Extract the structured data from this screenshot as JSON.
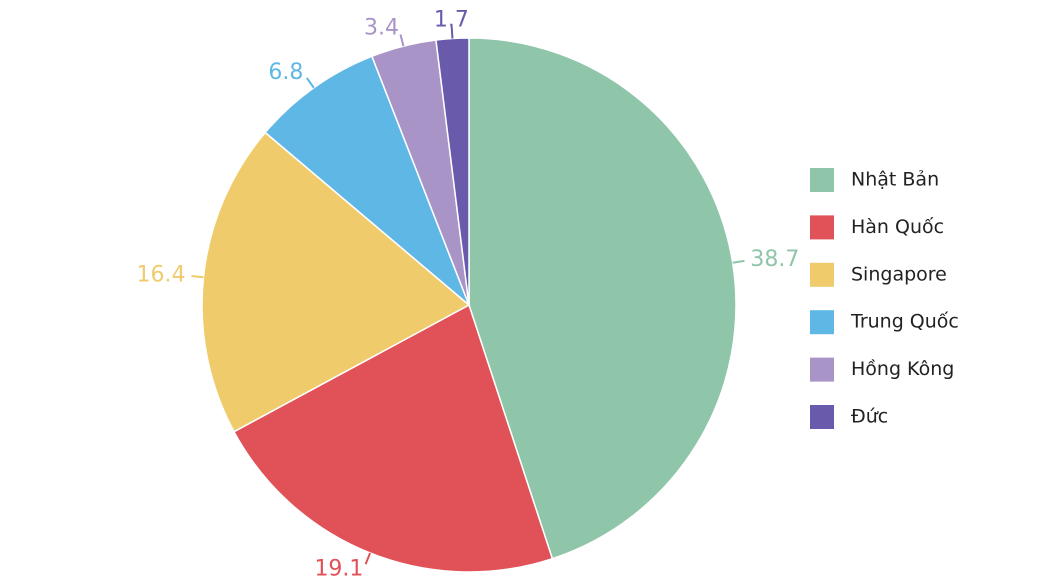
{
  "chart_data": {
    "type": "pie",
    "categories": [
      "Nhật Bản",
      "Hàn Quốc",
      "Singapore",
      "Trung Quốc",
      "Hồng Kông",
      "Đức"
    ],
    "values": [
      38.7,
      19.1,
      16.4,
      6.8,
      3.4,
      1.7
    ],
    "colors": [
      "#8fc5a9",
      "#e05257",
      "#f0cb6b",
      "#5fb7e6",
      "#a994c8",
      "#6a5aab"
    ],
    "legend": "right"
  }
}
